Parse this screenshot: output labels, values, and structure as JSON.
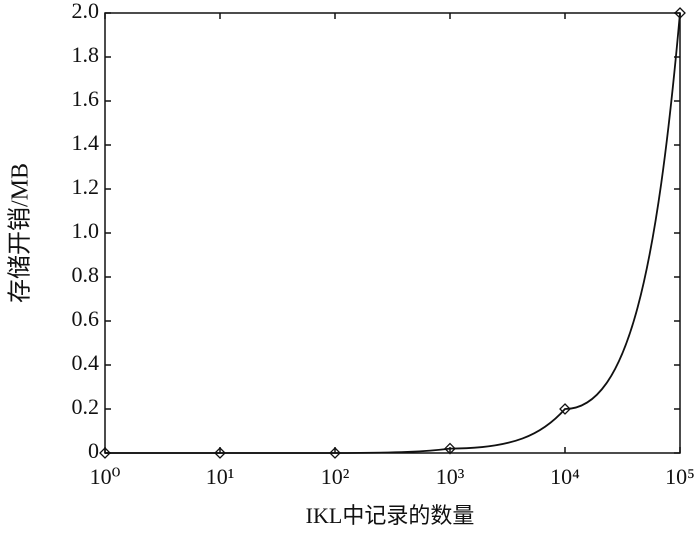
{
  "chart_data": {
    "type": "line",
    "x_label": "IKL中记录的数量",
    "y_label": "存储开销/MB",
    "x": [
      1,
      10,
      100,
      1000,
      10000,
      100000
    ],
    "series": [
      {
        "name": null,
        "color": "#111111",
        "values": [
          0,
          0,
          0,
          0.02,
          0.2,
          2.0
        ]
      }
    ],
    "xscale": "log",
    "xlim": [
      1,
      100000
    ],
    "xticks": [
      {
        "value": 1,
        "label": "10⁰"
      },
      {
        "value": 10,
        "label": "10¹"
      },
      {
        "value": 100,
        "label": "10²"
      },
      {
        "value": 1000,
        "label": "10³"
      },
      {
        "value": 10000,
        "label": "10⁴"
      },
      {
        "value": 100000,
        "label": "10⁵"
      }
    ],
    "ylim": [
      0,
      2.0
    ],
    "yticks": [
      0,
      0.2,
      0.4,
      0.6,
      0.8,
      {
        "value": 1.0,
        "label": "1.0"
      },
      1.2,
      1.4,
      1.6,
      1.8,
      {
        "value": 2.0,
        "label": "2.0"
      }
    ],
    "marker": "diamond",
    "grid": false
  }
}
